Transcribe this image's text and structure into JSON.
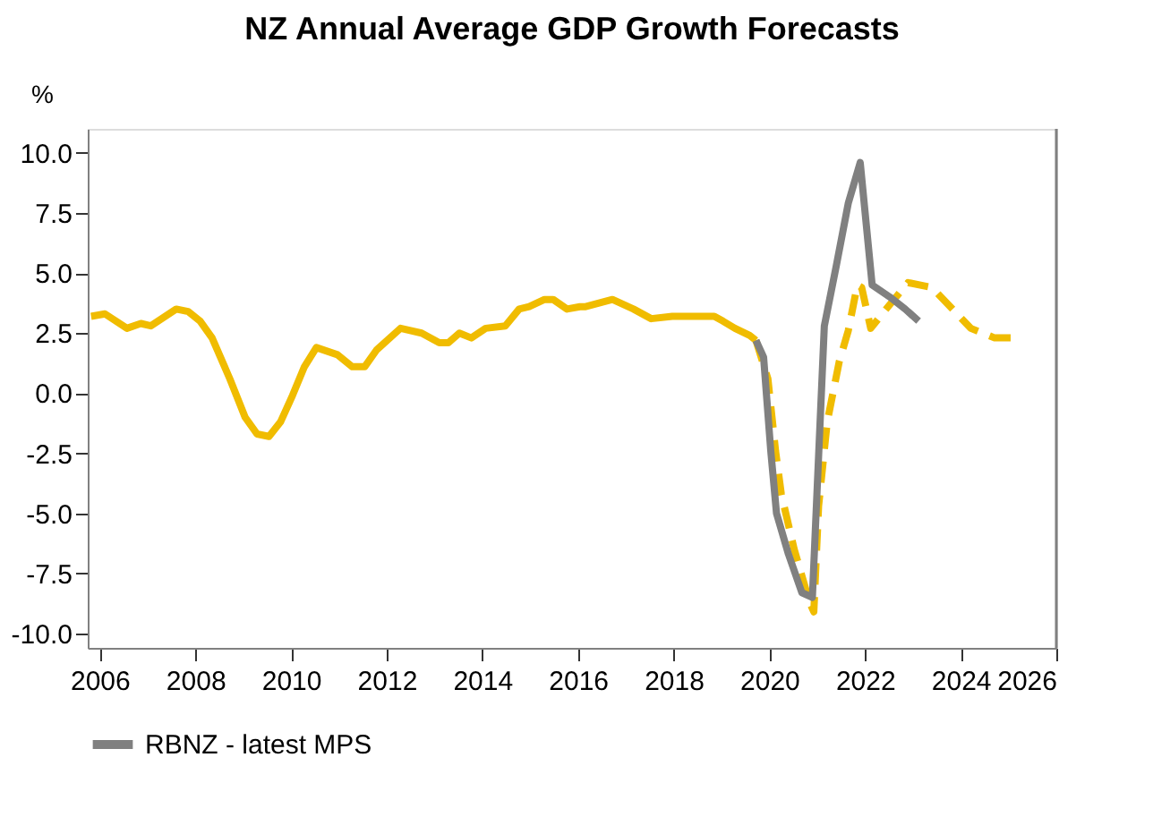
{
  "chart_data": {
    "type": "line",
    "title": "NZ Annual Average GDP Growth Forecasts",
    "ylabel": "%",
    "xlim": [
      2005.75,
      2026
    ],
    "xticks": [
      2006,
      2008,
      2010,
      2012,
      2014,
      2016,
      2018,
      2020,
      2022,
      2024,
      2026
    ],
    "ylim": [
      -10.6,
      11
    ],
    "yticks": [
      {
        "value": -10,
        "label": "-10.0"
      },
      {
        "value": -7.5,
        "label": "-7.5"
      },
      {
        "value": -5,
        "label": "-5.0"
      },
      {
        "value": -2.5,
        "label": "-2.5"
      },
      {
        "value": 0,
        "label": "0.0"
      },
      {
        "value": 2.5,
        "label": "2.5"
      },
      {
        "value": 5,
        "label": "5.0"
      },
      {
        "value": 7.5,
        "label": "7.5"
      },
      {
        "value": 10,
        "label": "10.0"
      }
    ],
    "grid": false,
    "legend": "bottom left",
    "series": [
      {
        "color": "#f0bc00",
        "line_style": "solid",
        "x": [
          2005.82,
          2006.11,
          2006.57,
          2006.86,
          2007.07,
          2007.6,
          2007.85,
          2008.1,
          2008.35,
          2008.72,
          2009.04,
          2009.29,
          2009.54,
          2009.78,
          2010.03,
          2010.28,
          2010.53,
          2010.97,
          2011.28,
          2011.54,
          2011.79,
          2012.29,
          2012.73,
          2013.1,
          2013.29,
          2013.52,
          2013.77,
          2014.07,
          2014.48,
          2014.77,
          2014.98,
          2015.3,
          2015.48,
          2015.77,
          2016.04,
          2016.16,
          2016.72,
          2017.16,
          2017.53,
          2017.97,
          2018.85,
          2019.03,
          2019.28,
          2019.59,
          2019.72
        ],
        "values": [
          3.2,
          3.3,
          2.7,
          2.9,
          2.8,
          3.5,
          3.4,
          3.0,
          2.3,
          0.6,
          -1.0,
          -1.7,
          -1.8,
          -1.2,
          -0.1,
          1.1,
          1.9,
          1.6,
          1.1,
          1.1,
          1.8,
          2.7,
          2.5,
          2.1,
          2.1,
          2.5,
          2.3,
          2.7,
          2.8,
          3.5,
          3.6,
          3.9,
          3.9,
          3.5,
          3.6,
          3.6,
          3.9,
          3.5,
          3.1,
          3.2,
          3.2,
          3.0,
          2.7,
          2.4,
          2.2
        ]
      },
      {
        "color": "#f0bc00",
        "line_style": "dashed",
        "x": [
          2019.72,
          2019.97,
          2020.13,
          2020.25,
          2020.52,
          2020.84,
          2020.93,
          2021.03,
          2021.21,
          2021.46,
          2021.65,
          2021.84,
          2021.93,
          2022.12,
          2022.4,
          2022.9,
          2023.4,
          2024.21,
          2024.71,
          2025.09
        ],
        "values": [
          2.2,
          0.6,
          -2.4,
          -4.2,
          -6.5,
          -8.7,
          -9.1,
          -4.7,
          -1.2,
          1.3,
          2.6,
          4.5,
          4.4,
          2.7,
          3.4,
          4.6,
          4.4,
          2.7,
          2.3,
          2.3
        ]
      },
      {
        "name": "RBNZ - latest MPS",
        "color": "#808080",
        "line_style": "solid",
        "x": [
          2019.72,
          2019.88,
          2020.03,
          2020.15,
          2020.4,
          2020.68,
          2020.9,
          2021.15,
          2021.4,
          2021.65,
          2021.9,
          2022.15,
          2022.52,
          2022.84,
          2023.12
        ],
        "values": [
          2.2,
          1.5,
          -2.4,
          -5.0,
          -6.7,
          -8.3,
          -8.5,
          2.8,
          5.3,
          7.9,
          9.6,
          4.5,
          4.0,
          3.5,
          3.0
        ]
      }
    ]
  }
}
